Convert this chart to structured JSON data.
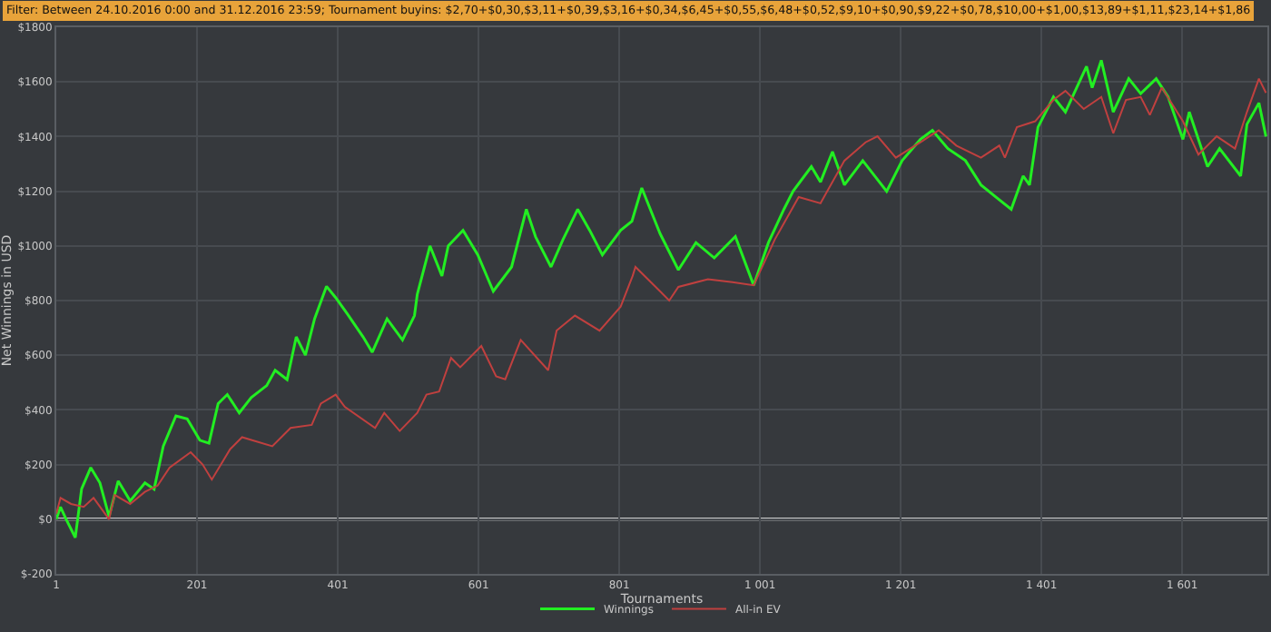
{
  "chart_data": {
    "type": "line",
    "title": "Filter: Between 24.10.2016 0:00 and 31.12.2016 23:59; Tournament buyins: $2,70+$0,30,$3,11+$0,39,$3,16+$0,34,$6,45+$0,55,$6,48+$0,52,$9,10+$0,90,$9,22+$0,78,$10,00+$1,00,$13,89+$1,11,$23,14+$1,86",
    "xlabel": "Tournaments",
    "ylabel": "Net Winnings in USD",
    "xlim": [
      1,
      1722
    ],
    "ylim": [
      -200,
      1800
    ],
    "xticks": [
      1,
      201,
      401,
      601,
      801,
      {
        "value": 1001,
        "label": "1 001"
      },
      {
        "value": 1201,
        "label": "1 201"
      },
      {
        "value": 1401,
        "label": "1 401"
      },
      {
        "value": 1601,
        "label": "1 601"
      }
    ],
    "yticks": [
      {
        "value": -200,
        "label": "$-200"
      },
      {
        "value": 0,
        "label": "$0"
      },
      {
        "value": 200,
        "label": "$200"
      },
      {
        "value": 400,
        "label": "$400"
      },
      {
        "value": 600,
        "label": "$600"
      },
      {
        "value": 800,
        "label": "$800"
      },
      {
        "value": 1000,
        "label": "$1000"
      },
      {
        "value": 1200,
        "label": "$1200"
      },
      {
        "value": 1400,
        "label": "$1400"
      },
      {
        "value": 1600,
        "label": "$1600"
      },
      {
        "value": 1800,
        "label": "$1800"
      }
    ],
    "grid": true,
    "legend": "bottom",
    "marker": "none",
    "line_style": "solid",
    "ref_lines": [
      {
        "axis": "y",
        "value": 0,
        "color": "#ffffff"
      }
    ],
    "series": [
      {
        "name": "Winnings",
        "color": "#22ee22",
        "x": [
          1,
          7,
          15,
          28,
          37,
          50,
          63,
          76,
          89,
          106,
          127,
          140,
          153,
          171,
          187,
          205,
          218,
          231,
          244,
          261,
          278,
          300,
          312,
          329,
          342,
          355,
          368,
          385,
          398,
          415,
          437,
          450,
          471,
          493,
          510,
          514,
          532,
          549,
          558,
          579,
          600,
          622,
          648,
          669,
          682,
          704,
          721,
          742,
          759,
          777,
          803,
          819,
          833,
          859,
          885,
          910,
          936,
          966,
          992,
          1013,
          1035,
          1048,
          1074,
          1087,
          1104,
          1121,
          1147,
          1181,
          1203,
          1229,
          1246,
          1268,
          1293,
          1315,
          1336,
          1358,
          1375,
          1384,
          1396,
          1418,
          1435,
          1465,
          1473,
          1486,
          1503,
          1525,
          1542,
          1564,
          1581,
          1602,
          1611,
          1637,
          1654,
          1684,
          1693,
          1710,
          1720
        ],
        "values": [
          0,
          45,
          0,
          -67,
          111,
          189,
          133,
          10,
          140,
          67,
          133,
          110,
          267,
          378,
          367,
          289,
          278,
          423,
          456,
          389,
          445,
          489,
          545,
          511,
          667,
          600,
          733,
          852,
          811,
          750,
          667,
          611,
          733,
          656,
          745,
          823,
          1000,
          890,
          1000,
          1057,
          967,
          834,
          923,
          1134,
          1034,
          923,
          1023,
          1134,
          1057,
          967,
          1057,
          1090,
          1212,
          1045,
          912,
          1012,
          956,
          1034,
          856,
          1012,
          1134,
          1200,
          1290,
          1234,
          1345,
          1223,
          1312,
          1200,
          1312,
          1390,
          1423,
          1356,
          1312,
          1223,
          1179,
          1134,
          1256,
          1223,
          1434,
          1545,
          1490,
          1657,
          1579,
          1679,
          1490,
          1612,
          1557,
          1612,
          1545,
          1390,
          1490,
          1290,
          1356,
          1256,
          1445,
          1523,
          1400
        ]
      },
      {
        "name": "All-in EV",
        "color": "#c0403f",
        "x": [
          1,
          7,
          22,
          40,
          54,
          76,
          84,
          106,
          127,
          145,
          162,
          192,
          209,
          222,
          248,
          265,
          308,
          334,
          364,
          377,
          398,
          411,
          454,
          467,
          489,
          514,
          527,
          545,
          562,
          575,
          605,
          626,
          639,
          661,
          700,
          712,
          738,
          773,
          803,
          820,
          824,
          859,
          872,
          885,
          927,
          962,
          992,
          1022,
          1056,
          1087,
          1121,
          1151,
          1168,
          1194,
          1229,
          1255,
          1280,
          1315,
          1341,
          1349,
          1366,
          1392,
          1418,
          1435,
          1461,
          1486,
          1503,
          1521,
          1542,
          1555,
          1572,
          1602,
          1624,
          1650,
          1676,
          1693,
          1710,
          1720
        ],
        "values": [
          20,
          78,
          56,
          45,
          78,
          0,
          89,
          56,
          100,
          123,
          189,
          245,
          200,
          145,
          256,
          300,
          267,
          334,
          345,
          423,
          456,
          411,
          334,
          389,
          323,
          389,
          456,
          467,
          590,
          556,
          634,
          523,
          512,
          656,
          545,
          690,
          745,
          690,
          778,
          890,
          923,
          834,
          800,
          850,
          878,
          867,
          856,
          1023,
          1179,
          1156,
          1312,
          1379,
          1401,
          1323,
          1379,
          1423,
          1367,
          1323,
          1367,
          1323,
          1434,
          1456,
          1534,
          1567,
          1501,
          1545,
          1412,
          1534,
          1545,
          1479,
          1579,
          1456,
          1334,
          1401,
          1356,
          1490,
          1612,
          1560
        ]
      }
    ]
  }
}
